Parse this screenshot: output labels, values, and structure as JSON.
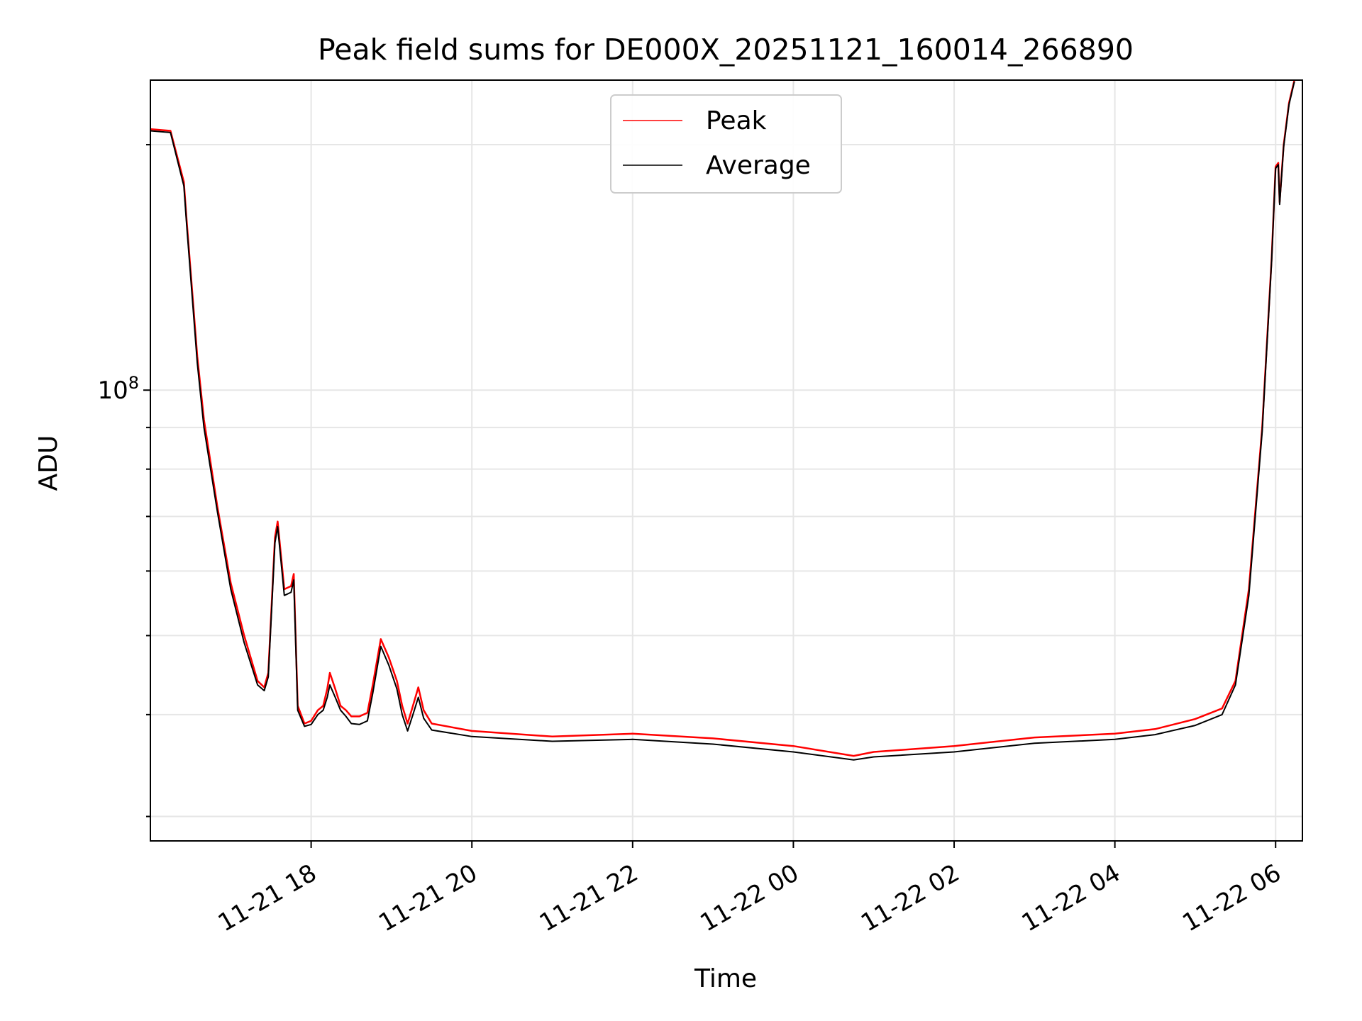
{
  "chart_data": {
    "type": "line",
    "title": "Peak field sums for DE000X_20251121_160014_266890",
    "xlabel": "Time",
    "ylabel": "ADU",
    "y_scale": "log",
    "ylim": [
      28000000,
      240000000
    ],
    "xlim": [
      "2025-11-21T16:00",
      "2025-11-22T06:20"
    ],
    "grid": true,
    "legend_position": "top-center",
    "x_ticks": [
      {
        "t": "2025-11-21T18:00",
        "label": "11-21 18"
      },
      {
        "t": "2025-11-21T20:00",
        "label": "11-21 20"
      },
      {
        "t": "2025-11-21T22:00",
        "label": "11-21 22"
      },
      {
        "t": "2025-11-22T00:00",
        "label": "11-22 00"
      },
      {
        "t": "2025-11-22T02:00",
        "label": "11-22 02"
      },
      {
        "t": "2025-11-22T04:00",
        "label": "11-22 04"
      },
      {
        "t": "2025-11-22T06:00",
        "label": "11-22 06"
      }
    ],
    "y_major_ticks": [
      {
        "value": 100000000,
        "label_base": "10",
        "label_exp": "8"
      }
    ],
    "series": [
      {
        "name": "Peak",
        "color": "#ff0000",
        "points": [
          [
            "2025-11-21T16:00",
            209000000
          ],
          [
            "2025-11-21T16:15",
            208000000
          ],
          [
            "2025-11-21T16:25",
            180000000
          ],
          [
            "2025-11-21T16:27",
            162000000
          ],
          [
            "2025-11-21T16:30",
            140000000
          ],
          [
            "2025-11-21T16:35",
            110000000
          ],
          [
            "2025-11-21T16:40",
            92000000
          ],
          [
            "2025-11-21T16:50",
            72000000
          ],
          [
            "2025-11-21T17:00",
            58000000
          ],
          [
            "2025-11-21T17:10",
            50000000
          ],
          [
            "2025-11-21T17:20",
            44000000
          ],
          [
            "2025-11-21T17:25",
            43200000
          ],
          [
            "2025-11-21T17:28",
            45000000
          ],
          [
            "2025-11-21T17:33",
            66000000
          ],
          [
            "2025-11-21T17:35",
            69000000
          ],
          [
            "2025-11-21T17:40",
            57000000
          ],
          [
            "2025-11-21T17:45",
            57500000
          ],
          [
            "2025-11-21T17:47",
            59500000
          ],
          [
            "2025-11-21T17:50",
            41000000
          ],
          [
            "2025-11-21T17:55",
            39000000
          ],
          [
            "2025-11-21T18:00",
            39300000
          ],
          [
            "2025-11-21T18:05",
            40500000
          ],
          [
            "2025-11-21T18:09",
            41000000
          ],
          [
            "2025-11-21T18:12",
            43000000
          ],
          [
            "2025-11-21T18:14",
            45000000
          ],
          [
            "2025-11-21T18:18",
            43000000
          ],
          [
            "2025-11-21T18:22",
            41000000
          ],
          [
            "2025-11-21T18:26",
            40500000
          ],
          [
            "2025-11-21T18:30",
            39800000
          ],
          [
            "2025-11-21T18:36",
            39800000
          ],
          [
            "2025-11-21T18:42",
            40200000
          ],
          [
            "2025-11-21T18:46",
            43500000
          ],
          [
            "2025-11-21T18:52",
            49500000
          ],
          [
            "2025-11-21T18:58",
            47000000
          ],
          [
            "2025-11-21T19:04",
            44000000
          ],
          [
            "2025-11-21T19:08",
            41000000
          ],
          [
            "2025-11-21T19:12",
            39000000
          ],
          [
            "2025-11-21T19:16",
            41000000
          ],
          [
            "2025-11-21T19:20",
            43200000
          ],
          [
            "2025-11-21T19:24",
            40500000
          ],
          [
            "2025-11-21T19:30",
            39000000
          ],
          [
            "2025-11-21T20:00",
            38200000
          ],
          [
            "2025-11-21T21:00",
            37600000
          ],
          [
            "2025-11-21T22:00",
            37900000
          ],
          [
            "2025-11-21T23:00",
            37400000
          ],
          [
            "2025-11-22T00:00",
            36600000
          ],
          [
            "2025-11-22T00:45",
            35600000
          ],
          [
            "2025-11-22T01:00",
            36000000
          ],
          [
            "2025-11-22T02:00",
            36600000
          ],
          [
            "2025-11-22T03:00",
            37500000
          ],
          [
            "2025-11-22T04:00",
            37900000
          ],
          [
            "2025-11-22T04:30",
            38400000
          ],
          [
            "2025-11-22T05:00",
            39500000
          ],
          [
            "2025-11-22T05:20",
            40700000
          ],
          [
            "2025-11-22T05:30",
            44000000
          ],
          [
            "2025-11-22T05:40",
            57000000
          ],
          [
            "2025-11-22T05:50",
            90000000
          ],
          [
            "2025-11-22T05:57",
            145000000
          ],
          [
            "2025-11-22T06:00",
            188000000
          ],
          [
            "2025-11-22T06:02",
            190000000
          ],
          [
            "2025-11-22T06:03",
            170000000
          ],
          [
            "2025-11-22T06:06",
            200000000
          ],
          [
            "2025-11-22T06:10",
            225000000
          ],
          [
            "2025-11-22T06:14",
            240000000
          ]
        ]
      },
      {
        "name": "Average",
        "color": "#000000",
        "points": [
          [
            "2025-11-21T16:00",
            208000000
          ],
          [
            "2025-11-21T16:15",
            207000000
          ],
          [
            "2025-11-21T16:25",
            178000000
          ],
          [
            "2025-11-21T16:27",
            160000000
          ],
          [
            "2025-11-21T16:30",
            138000000
          ],
          [
            "2025-11-21T16:35",
            108000000
          ],
          [
            "2025-11-21T16:40",
            90000000
          ],
          [
            "2025-11-21T16:50",
            71000000
          ],
          [
            "2025-11-21T17:00",
            57000000
          ],
          [
            "2025-11-21T17:10",
            49000000
          ],
          [
            "2025-11-21T17:20",
            43500000
          ],
          [
            "2025-11-21T17:25",
            42800000
          ],
          [
            "2025-11-21T17:28",
            44500000
          ],
          [
            "2025-11-21T17:33",
            65000000
          ],
          [
            "2025-11-21T17:35",
            68000000
          ],
          [
            "2025-11-21T17:40",
            56000000
          ],
          [
            "2025-11-21T17:45",
            56500000
          ],
          [
            "2025-11-21T17:47",
            58500000
          ],
          [
            "2025-11-21T17:50",
            40500000
          ],
          [
            "2025-11-21T17:55",
            38700000
          ],
          [
            "2025-11-21T18:00",
            38900000
          ],
          [
            "2025-11-21T18:05",
            40000000
          ],
          [
            "2025-11-21T18:09",
            40500000
          ],
          [
            "2025-11-21T18:12",
            42000000
          ],
          [
            "2025-11-21T18:14",
            43500000
          ],
          [
            "2025-11-21T18:18",
            42000000
          ],
          [
            "2025-11-21T18:22",
            40500000
          ],
          [
            "2025-11-21T18:26",
            39800000
          ],
          [
            "2025-11-21T18:30",
            39000000
          ],
          [
            "2025-11-21T18:36",
            38900000
          ],
          [
            "2025-11-21T18:42",
            39300000
          ],
          [
            "2025-11-21T18:46",
            42500000
          ],
          [
            "2025-11-21T18:52",
            48500000
          ],
          [
            "2025-11-21T18:58",
            46000000
          ],
          [
            "2025-11-21T19:04",
            43000000
          ],
          [
            "2025-11-21T19:08",
            40000000
          ],
          [
            "2025-11-21T19:12",
            38200000
          ],
          [
            "2025-11-21T19:16",
            40000000
          ],
          [
            "2025-11-21T19:20",
            42000000
          ],
          [
            "2025-11-21T19:24",
            39600000
          ],
          [
            "2025-11-21T19:30",
            38300000
          ],
          [
            "2025-11-21T20:00",
            37600000
          ],
          [
            "2025-11-21T21:00",
            37100000
          ],
          [
            "2025-11-21T22:00",
            37300000
          ],
          [
            "2025-11-21T23:00",
            36800000
          ],
          [
            "2025-11-22T00:00",
            36000000
          ],
          [
            "2025-11-22T00:45",
            35200000
          ],
          [
            "2025-11-22T01:00",
            35500000
          ],
          [
            "2025-11-22T02:00",
            36000000
          ],
          [
            "2025-11-22T03:00",
            36900000
          ],
          [
            "2025-11-22T04:00",
            37300000
          ],
          [
            "2025-11-22T04:30",
            37800000
          ],
          [
            "2025-11-22T05:00",
            38800000
          ],
          [
            "2025-11-22T05:20",
            40000000
          ],
          [
            "2025-11-22T05:30",
            43500000
          ],
          [
            "2025-11-22T05:40",
            56000000
          ],
          [
            "2025-11-22T05:50",
            89000000
          ],
          [
            "2025-11-22T05:57",
            144000000
          ],
          [
            "2025-11-22T06:00",
            187000000
          ],
          [
            "2025-11-22T06:02",
            189000000
          ],
          [
            "2025-11-22T06:03",
            169000000
          ],
          [
            "2025-11-22T06:06",
            199000000
          ],
          [
            "2025-11-22T06:10",
            224000000
          ],
          [
            "2025-11-22T06:14",
            239000000
          ]
        ]
      }
    ]
  }
}
